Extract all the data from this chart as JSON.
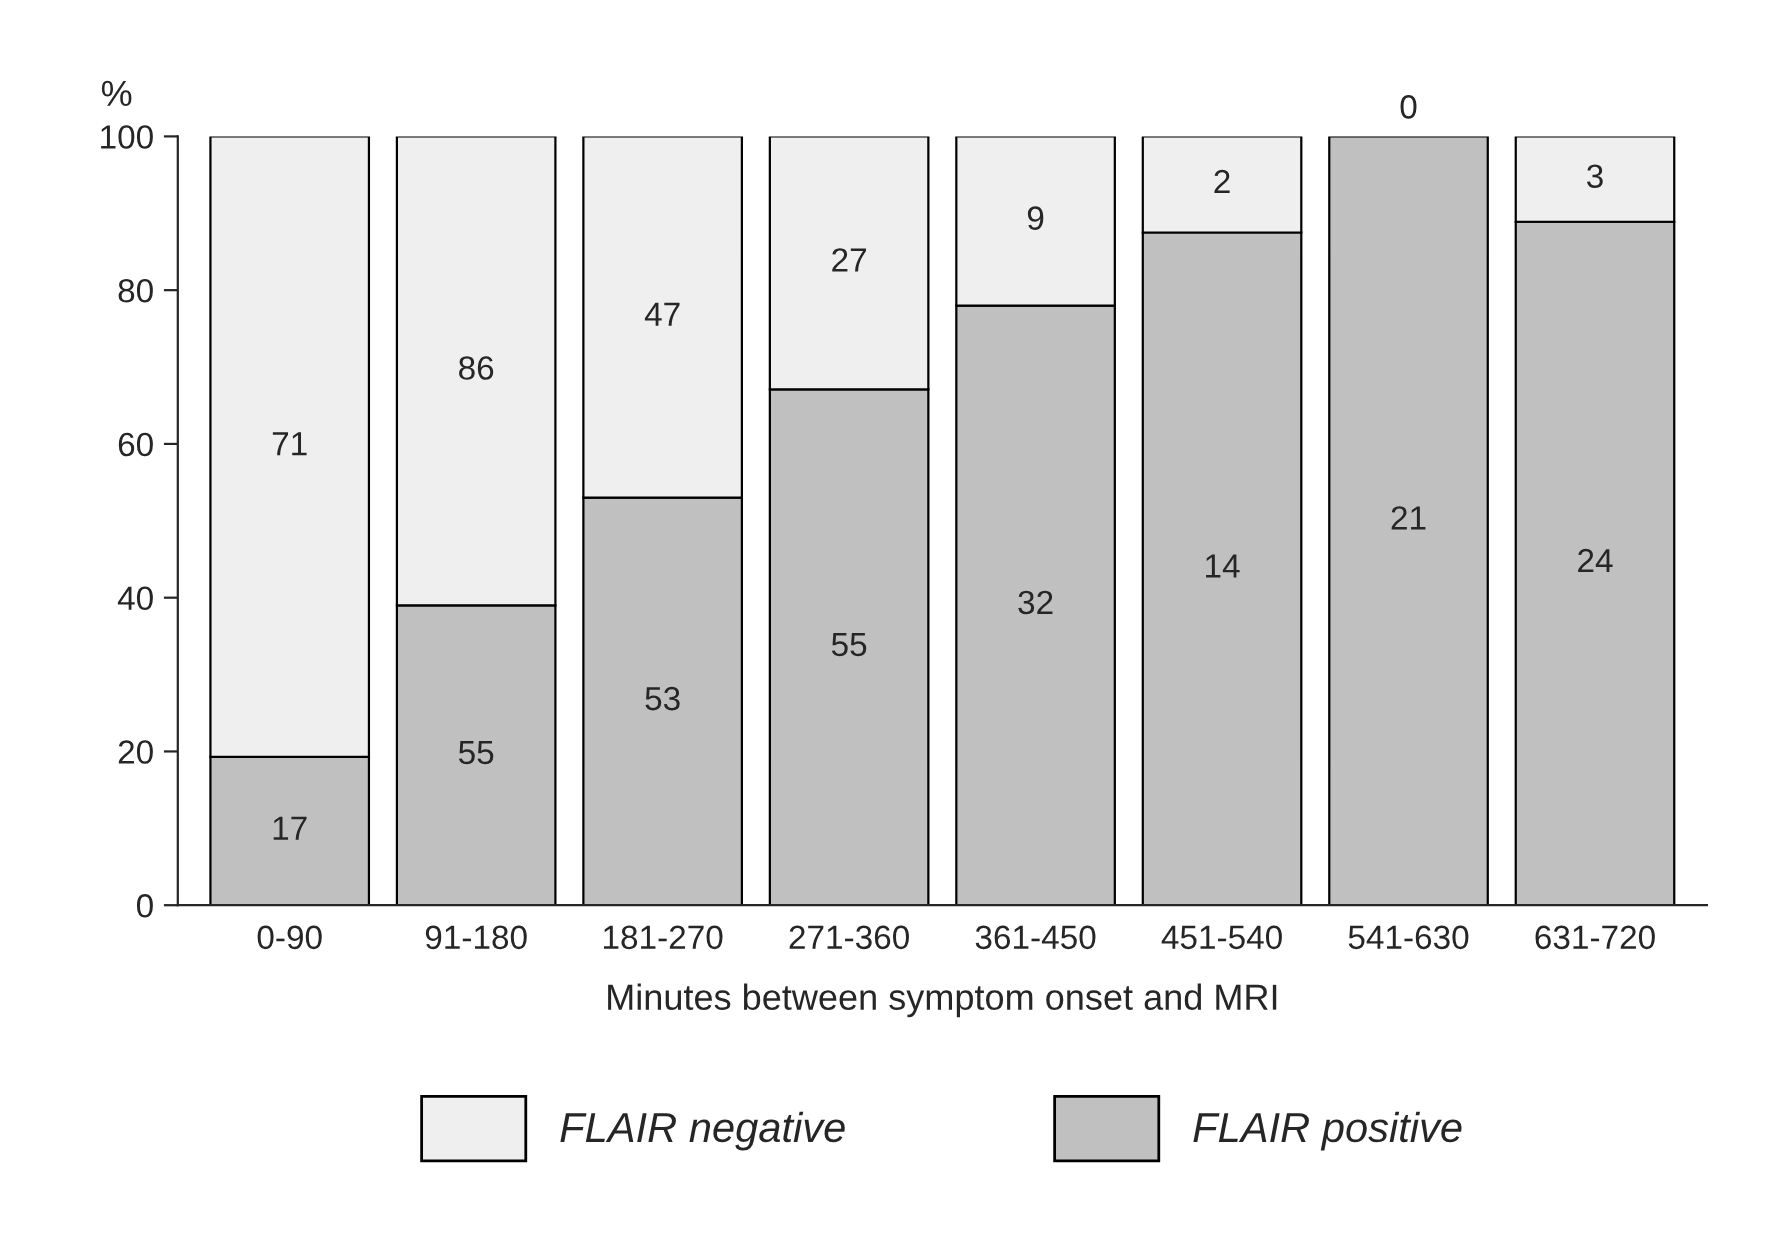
{
  "chart_data": {
    "type": "bar",
    "stacked": true,
    "xlabel": "Minutes between symptom onset and MRI",
    "ylabel": "%",
    "categories": [
      "0-90",
      "91-180",
      "181-270",
      "271-360",
      "361-450",
      "451-540",
      "541-630",
      "631-720"
    ],
    "series": [
      {
        "name": "FLAIR positive",
        "color": "#c0c0c0",
        "values": [
          19.3,
          39.0,
          53.0,
          67.1,
          78.0,
          87.5,
          100,
          88.9
        ]
      },
      {
        "name": "FLAIR negative",
        "color": "#efefef",
        "values": [
          80.7,
          61.0,
          47.0,
          32.9,
          22.0,
          12.5,
          0,
          11.1
        ]
      }
    ],
    "annotations": [
      "17",
      "71",
      "55",
      "86",
      "53",
      "47",
      "55",
      "27",
      "32",
      "9",
      "14",
      "2",
      "21",
      "0",
      "24",
      "3"
    ],
    "ylim": [
      0,
      100
    ],
    "yticks": [
      0,
      20,
      40,
      60,
      80,
      100
    ],
    "grid": false,
    "legend": "bottom"
  }
}
